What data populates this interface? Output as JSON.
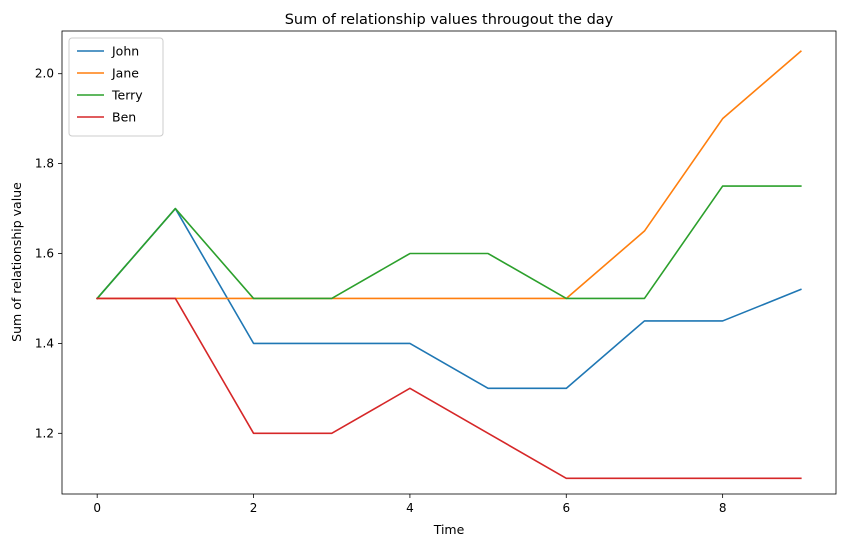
{
  "chart_data": {
    "type": "line",
    "title": "Sum of relationship values througout the day",
    "xlabel": "Time",
    "ylabel": "Sum of relationship value",
    "x": [
      0,
      1,
      2,
      3,
      4,
      5,
      6,
      7,
      8,
      9
    ],
    "xlim": [
      -0.45,
      9.45
    ],
    "ylim": [
      1.065,
      2.095
    ],
    "xticks": [
      0,
      2,
      4,
      6,
      8
    ],
    "xtick_labels": [
      "0",
      "2",
      "4",
      "6",
      "8"
    ],
    "yticks": [
      1.2,
      1.4,
      1.6,
      1.8,
      2.0
    ],
    "ytick_labels": [
      "1.2",
      "1.4",
      "1.6",
      "1.8",
      "2.0"
    ],
    "grid": false,
    "legend_position": "top-left",
    "series": [
      {
        "name": "John",
        "color": "#1f77b4",
        "values": [
          1.5,
          1.7,
          1.4,
          1.4,
          1.4,
          1.3,
          1.3,
          1.45,
          1.45,
          1.52
        ]
      },
      {
        "name": "Jane",
        "color": "#ff7f0e",
        "values": [
          1.5,
          1.5,
          1.5,
          1.5,
          1.5,
          1.5,
          1.5,
          1.65,
          1.9,
          2.05
        ]
      },
      {
        "name": "Terry",
        "color": "#2ca02c",
        "values": [
          1.5,
          1.7,
          1.5,
          1.5,
          1.6,
          1.6,
          1.5,
          1.5,
          1.75,
          1.75
        ]
      },
      {
        "name": "Ben",
        "color": "#d62728",
        "values": [
          1.5,
          1.5,
          1.2,
          1.2,
          1.3,
          1.2,
          1.1,
          1.1,
          1.1,
          1.1
        ]
      }
    ]
  }
}
